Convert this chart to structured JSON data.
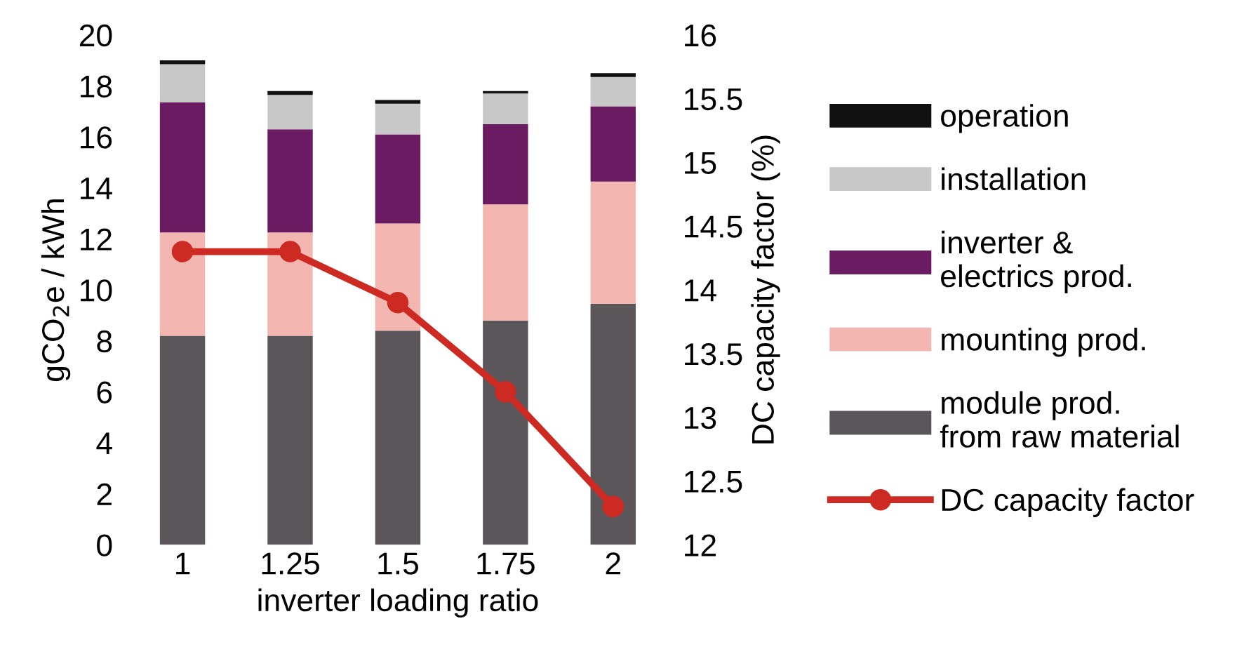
{
  "chart_data": {
    "type": "bar",
    "stacked": true,
    "categories": [
      "1",
      "1.25",
      "1.5",
      "1.75",
      "2"
    ],
    "xlabel": "inverter loading ratio",
    "ylabel": "gCO$_{2}$e / kWh",
    "y2label": "DC capacity factor (%)",
    "series": [
      {
        "name": "module prod.\nfrom raw material",
        "color": "#5a5659",
        "values": [
          8.2,
          8.2,
          8.4,
          8.8,
          9.45
        ]
      },
      {
        "name": "mounting prod.",
        "color": "#f4b6b1",
        "values": [
          4.05,
          4.05,
          4.2,
          4.55,
          4.8
        ]
      },
      {
        "name": "inverter &\nelectrics prod.",
        "color": "#6a1b62",
        "values": [
          5.1,
          4.05,
          3.5,
          3.15,
          2.95
        ]
      },
      {
        "name": "installation",
        "color": "#c8c8c8",
        "values": [
          1.5,
          1.35,
          1.2,
          1.2,
          1.15
        ]
      },
      {
        "name": "operation",
        "color": "#111111",
        "values": [
          0.15,
          0.15,
          0.15,
          0.1,
          0.15
        ]
      },
      {
        "name": "DC capacity factor",
        "type": "line",
        "axis": "y2",
        "color": "#cc2a22",
        "values": [
          14.3,
          14.3,
          13.9,
          13.2,
          12.3
        ],
        "marker": "circle",
        "line_style": "solid"
      }
    ],
    "ylim": [
      0,
      20
    ],
    "yticks": [
      0,
      2,
      4,
      6,
      8,
      10,
      12,
      14,
      16,
      18,
      20
    ],
    "y2lim": [
      12,
      16
    ],
    "y2ticks": [
      12,
      12.5,
      13,
      13.5,
      14,
      14.5,
      15,
      15.5,
      16
    ],
    "legend": "right",
    "grid": false
  }
}
